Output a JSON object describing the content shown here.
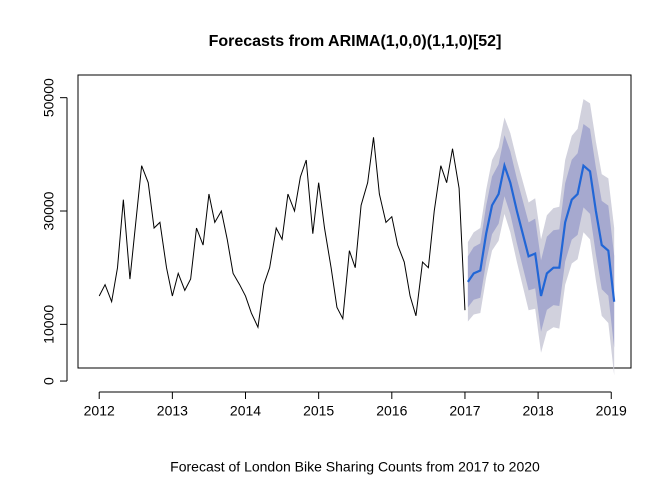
{
  "chart_data": {
    "type": "forecast",
    "title": "Forecasts from ARIMA(1,0,0)(1,1,0)[52]",
    "xlabel": "Forecast of London Bike Sharing Counts from 2017 to 2020",
    "xlim": [
      2011.71,
      2019.27
    ],
    "ylim": [
      2300,
      54000
    ],
    "xticks": [
      2012,
      2013,
      2014,
      2015,
      2016,
      2017,
      2018,
      2019
    ],
    "yticks": [
      0,
      10000,
      30000,
      50000
    ],
    "series": [
      {
        "color": "#000000",
        "x": [
          2012,
          2012.08,
          2012.17,
          2012.25,
          2012.33,
          2012.42,
          2012.5,
          2012.58,
          2012.67,
          2012.75,
          2012.83,
          2012.92,
          2013,
          2013.08,
          2013.17,
          2013.25,
          2013.33,
          2013.42,
          2013.5,
          2013.58,
          2013.67,
          2013.75,
          2013.83,
          2013.92,
          2014,
          2014.08,
          2014.17,
          2014.25,
          2014.33,
          2014.42,
          2014.5,
          2014.58,
          2014.67,
          2014.75,
          2014.83,
          2014.92,
          2015,
          2015.08,
          2015.17,
          2015.25,
          2015.33,
          2015.42,
          2015.5,
          2015.58,
          2015.67,
          2015.75,
          2015.83,
          2015.92,
          2016,
          2016.08,
          2016.17,
          2016.25,
          2016.33,
          2016.42,
          2016.5,
          2016.58,
          2016.67,
          2016.75,
          2016.83,
          2016.92,
          2017
        ],
        "values": [
          15000,
          17000,
          14000,
          20000,
          32000,
          18000,
          28000,
          38000,
          35000,
          27000,
          28000,
          20000,
          15000,
          19000,
          16000,
          18000,
          27000,
          24000,
          33000,
          28000,
          30000,
          25000,
          19000,
          17000,
          15000,
          12000,
          9500,
          17000,
          20000,
          27000,
          25000,
          33000,
          30000,
          36000,
          39000,
          26000,
          35000,
          27000,
          20000,
          13000,
          11000,
          23000,
          20000,
          31000,
          35000,
          43000,
          33000,
          28000,
          29000,
          24000,
          21000,
          15000,
          11500,
          21000,
          20000,
          30000,
          38000,
          35000,
          41000,
          34000,
          12500
        ]
      },
      {
        "color": "#2166d6",
        "x": [
          2017.04,
          2017.12,
          2017.21,
          2017.29,
          2017.37,
          2017.46,
          2017.54,
          2017.62,
          2017.71,
          2017.79,
          2017.87,
          2017.96,
          2018.04,
          2018.12,
          2018.21,
          2018.29,
          2018.37,
          2018.46,
          2018.54,
          2018.62,
          2018.71,
          2018.79,
          2018.87,
          2018.96,
          2019.04
        ],
        "values": [
          17500,
          19000,
          19500,
          26000,
          31000,
          33000,
          38000,
          35000,
          30000,
          26000,
          22000,
          22500,
          15000,
          19000,
          20000,
          20000,
          28000,
          32000,
          33000,
          38000,
          37000,
          30000,
          24000,
          23000,
          14000
        ]
      }
    ],
    "intervals": [
      {
        "color": "#d1d1dd",
        "lower": [
          10500,
          11750,
          12000,
          18250,
          23000,
          24750,
          29500,
          26250,
          21000,
          16750,
          12500,
          12750,
          5000,
          8750,
          9500,
          9250,
          17000,
          20750,
          21500,
          26250,
          25000,
          17750,
          11500,
          10250,
          1000
        ],
        "upper": [
          24500,
          26250,
          27000,
          33750,
          39000,
          41250,
          46500,
          43750,
          39000,
          35250,
          31500,
          32250,
          25000,
          29250,
          30500,
          30750,
          39000,
          43250,
          44500,
          49750,
          49000,
          42250,
          36500,
          35750,
          27000
        ]
      },
      {
        "color": "#a6a9cf",
        "lower": [
          13000,
          14350,
          14700,
          21050,
          25900,
          27750,
          32600,
          29450,
          24300,
          20150,
          16000,
          16350,
          8700,
          12550,
          13400,
          13250,
          21100,
          24950,
          25800,
          30650,
          29500,
          22350,
          16200,
          15050,
          5900
        ],
        "upper": [
          22000,
          23650,
          24300,
          30950,
          36100,
          38250,
          43400,
          40550,
          35700,
          31850,
          28000,
          28650,
          21300,
          25450,
          26600,
          26750,
          34900,
          39050,
          40200,
          45350,
          44500,
          37650,
          31800,
          30950,
          22100
        ]
      }
    ]
  }
}
